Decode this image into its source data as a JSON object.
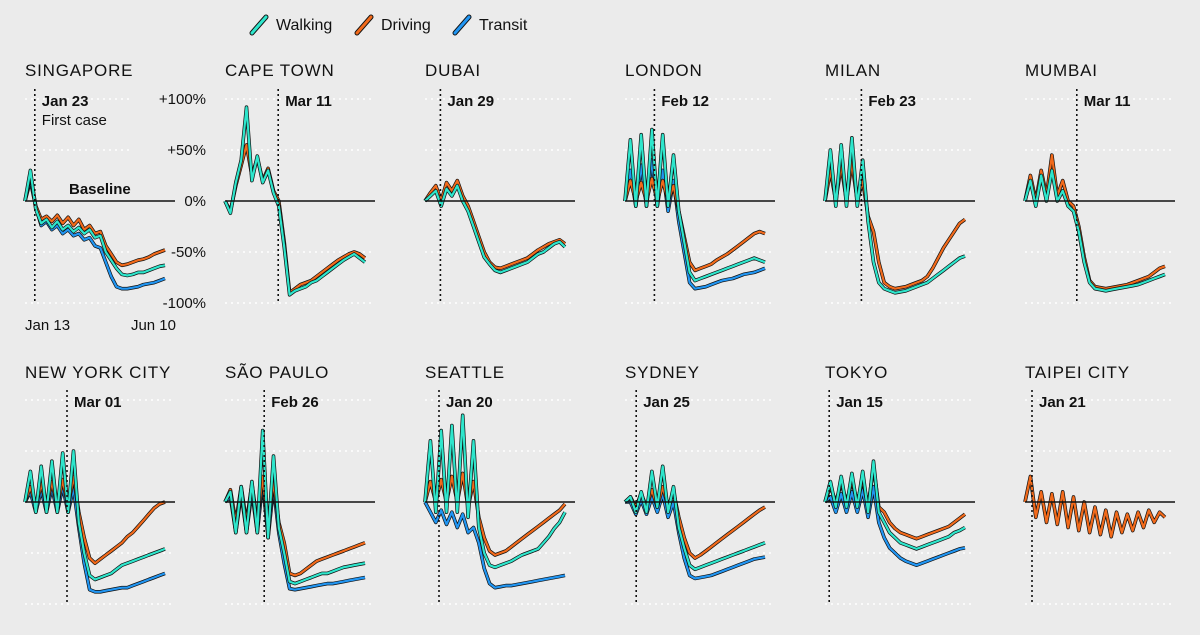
{
  "chart_data": {
    "type": "line",
    "title": "",
    "legend": [
      {
        "name": "Walking",
        "color": "#2ee6cc"
      },
      {
        "name": "Driving",
        "color": "#f26a1b"
      },
      {
        "name": "Transit",
        "color": "#2196f3"
      }
    ],
    "ylim": [
      -100,
      100
    ],
    "yticks": [
      {
        "value": 100,
        "label": "+100%"
      },
      {
        "value": 50,
        "label": "+50%"
      },
      {
        "value": 0,
        "label": "0%"
      },
      {
        "value": -50,
        "label": "-50%"
      },
      {
        "value": -100,
        "label": "-100%"
      }
    ],
    "x_start_label": "Jan 13",
    "x_end_label": "Jun 10",
    "baseline_label": "Baseline",
    "first_case_note": "First case",
    "cities": [
      {
        "name": "SINGAPORE",
        "marker": "Jan 23",
        "walking": [
          0,
          30,
          -8,
          -22,
          -18,
          -26,
          -20,
          -28,
          -24,
          -30,
          -26,
          -32,
          -28,
          -36,
          -34,
          -50,
          -58,
          -66,
          -72,
          -73,
          -72,
          -70,
          -70,
          -68,
          -66,
          -64,
          -63
        ],
        "driving": [
          0,
          25,
          -5,
          -18,
          -15,
          -20,
          -14,
          -22,
          -16,
          -24,
          -18,
          -28,
          -24,
          -32,
          -30,
          -44,
          -52,
          -60,
          -63,
          -62,
          -60,
          -58,
          -57,
          -55,
          -52,
          -50,
          -48
        ],
        "transit": [
          0,
          20,
          -6,
          -24,
          -20,
          -28,
          -24,
          -32,
          -28,
          -34,
          -32,
          -38,
          -36,
          -44,
          -46,
          -60,
          -74,
          -84,
          -86,
          -86,
          -85,
          -84,
          -82,
          -81,
          -80,
          -78,
          -76
        ]
      },
      {
        "name": "CAPE TOWN",
        "marker": "Mar 11",
        "walking": [
          0,
          -12,
          18,
          40,
          92,
          20,
          44,
          18,
          30,
          8,
          -5,
          -45,
          -92,
          -88,
          -86,
          -84,
          -80,
          -78,
          -74,
          -70,
          -66,
          -62,
          -58,
          -55,
          -52,
          -56,
          -60
        ],
        "driving": [
          0,
          -10,
          15,
          35,
          55,
          25,
          42,
          20,
          32,
          10,
          0,
          -40,
          -90,
          -86,
          -82,
          -80,
          -78,
          -74,
          -70,
          -66,
          -62,
          -58,
          -55,
          -52,
          -50,
          -52,
          -56
        ],
        "transit": null
      },
      {
        "name": "DUBAI",
        "marker": "Jan 29",
        "walking": [
          0,
          5,
          10,
          -5,
          12,
          5,
          15,
          0,
          -10,
          -25,
          -40,
          -55,
          -62,
          -68,
          -70,
          -68,
          -66,
          -64,
          -62,
          -60,
          -56,
          -52,
          -50,
          -46,
          -42,
          -40,
          -45
        ],
        "driving": [
          0,
          8,
          15,
          0,
          18,
          10,
          20,
          5,
          -5,
          -20,
          -35,
          -50,
          -60,
          -65,
          -66,
          -64,
          -62,
          -60,
          -58,
          -56,
          -52,
          -48,
          -45,
          -42,
          -40,
          -38,
          -42
        ],
        "transit": null
      },
      {
        "name": "LONDON",
        "marker": "Feb 12",
        "walking": [
          0,
          60,
          -5,
          65,
          -5,
          70,
          -5,
          65,
          -5,
          45,
          -10,
          -40,
          -70,
          -78,
          -76,
          -74,
          -72,
          -70,
          -68,
          -66,
          -64,
          -62,
          -60,
          -58,
          -56,
          -58,
          -60
        ],
        "driving": [
          0,
          20,
          0,
          18,
          0,
          22,
          0,
          20,
          0,
          15,
          -10,
          -35,
          -60,
          -68,
          -66,
          -64,
          -62,
          -58,
          -55,
          -52,
          -48,
          -44,
          -40,
          -36,
          -32,
          -30,
          -32
        ],
        "transit": [
          0,
          30,
          -5,
          35,
          -5,
          40,
          -5,
          30,
          -10,
          20,
          -20,
          -50,
          -80,
          -86,
          -85,
          -84,
          -82,
          -80,
          -78,
          -77,
          -76,
          -74,
          -72,
          -71,
          -70,
          -68,
          -66
        ]
      },
      {
        "name": "MILAN",
        "marker": "Feb 23",
        "walking": [
          0,
          50,
          -5,
          55,
          -5,
          62,
          -5,
          40,
          -20,
          -60,
          -80,
          -86,
          -88,
          -90,
          -89,
          -88,
          -86,
          -84,
          -82,
          -80,
          -76,
          -72,
          -68,
          -64,
          -60,
          -56,
          -54
        ],
        "driving": [
          0,
          30,
          0,
          35,
          0,
          38,
          0,
          20,
          -15,
          -30,
          -60,
          -80,
          -84,
          -86,
          -85,
          -84,
          -82,
          -80,
          -78,
          -74,
          -66,
          -56,
          -46,
          -38,
          -30,
          -22,
          -18
        ],
        "transit": null
      },
      {
        "name": "MUMBAI",
        "marker": "Mar 11",
        "walking": [
          0,
          20,
          -5,
          25,
          0,
          30,
          0,
          10,
          -5,
          -10,
          -30,
          -60,
          -80,
          -86,
          -87,
          -88,
          -87,
          -86,
          -85,
          -84,
          -83,
          -82,
          -80,
          -78,
          -76,
          -74,
          -72
        ],
        "driving": [
          0,
          25,
          0,
          30,
          5,
          45,
          5,
          20,
          0,
          -5,
          -25,
          -55,
          -78,
          -84,
          -85,
          -86,
          -85,
          -84,
          -83,
          -82,
          -80,
          -78,
          -76,
          -74,
          -70,
          -66,
          -64
        ],
        "transit": null
      },
      {
        "name": "NEW YORK CITY",
        "marker": "Mar 01",
        "walking": [
          0,
          30,
          -10,
          35,
          -10,
          40,
          -10,
          48,
          -10,
          50,
          -20,
          -50,
          -72,
          -76,
          -74,
          -72,
          -70,
          -66,
          -62,
          -60,
          -58,
          -56,
          -54,
          -52,
          -50,
          -48,
          -46
        ],
        "driving": [
          0,
          15,
          -5,
          18,
          -5,
          20,
          -5,
          22,
          -5,
          25,
          -10,
          -35,
          -55,
          -60,
          -56,
          -52,
          -48,
          -44,
          -40,
          -34,
          -30,
          -24,
          -18,
          -12,
          -6,
          -2,
          0
        ],
        "transit": [
          0,
          10,
          -10,
          12,
          -10,
          14,
          -10,
          15,
          -10,
          14,
          -25,
          -60,
          -86,
          -88,
          -88,
          -87,
          -86,
          -85,
          -84,
          -84,
          -82,
          -80,
          -78,
          -76,
          -74,
          -72,
          -70
        ]
      },
      {
        "name": "SÃO PAULO",
        "marker": "Feb 26",
        "walking": [
          0,
          10,
          -30,
          15,
          -30,
          20,
          -30,
          70,
          -35,
          45,
          -25,
          -50,
          -78,
          -80,
          -78,
          -76,
          -74,
          -72,
          -70,
          -70,
          -68,
          -66,
          -64,
          -63,
          -62,
          -61,
          -60
        ],
        "driving": [
          0,
          12,
          -20,
          15,
          -20,
          18,
          -20,
          25,
          -25,
          20,
          -20,
          -40,
          -70,
          -72,
          -70,
          -66,
          -62,
          -58,
          -56,
          -54,
          -52,
          -50,
          -48,
          -46,
          -44,
          -42,
          -40
        ],
        "transit": [
          0,
          5,
          -30,
          8,
          -30,
          10,
          -30,
          20,
          -35,
          15,
          -30,
          -60,
          -85,
          -86,
          -85,
          -84,
          -83,
          -82,
          -81,
          -80,
          -80,
          -79,
          -78,
          -77,
          -76,
          -75,
          -74
        ]
      },
      {
        "name": "SEATTLE",
        "marker": "Jan 20",
        "walking": [
          0,
          60,
          -10,
          70,
          -10,
          75,
          -10,
          85,
          -15,
          60,
          -25,
          -50,
          -62,
          -64,
          -62,
          -60,
          -58,
          -55,
          -52,
          -50,
          -48,
          -46,
          -40,
          -34,
          -26,
          -20,
          -10
        ],
        "driving": [
          0,
          20,
          0,
          22,
          0,
          25,
          0,
          28,
          -5,
          20,
          -15,
          -35,
          -48,
          -52,
          -50,
          -48,
          -44,
          -40,
          -36,
          -32,
          -28,
          -24,
          -20,
          -16,
          -12,
          -8,
          -2
        ],
        "transit": [
          0,
          -10,
          -20,
          -8,
          -22,
          -10,
          -25,
          -12,
          -30,
          -25,
          -40,
          -65,
          -80,
          -84,
          -83,
          -82,
          -82,
          -81,
          -80,
          -79,
          -78,
          -77,
          -76,
          -75,
          -74,
          -73,
          -72
        ]
      },
      {
        "name": "SYDNEY",
        "marker": "Jan 25",
        "walking": [
          0,
          5,
          -10,
          10,
          -10,
          30,
          -5,
          35,
          -10,
          15,
          -25,
          -45,
          -62,
          -66,
          -64,
          -62,
          -60,
          -58,
          -56,
          -54,
          -52,
          -50,
          -48,
          -46,
          -44,
          -42,
          -40
        ],
        "driving": [
          0,
          5,
          -5,
          8,
          -5,
          12,
          -5,
          15,
          -5,
          10,
          -15,
          -35,
          -50,
          -55,
          -52,
          -48,
          -44,
          -40,
          -36,
          -32,
          -28,
          -24,
          -20,
          -16,
          -12,
          -8,
          -5
        ],
        "transit": [
          0,
          0,
          -12,
          2,
          -12,
          5,
          -10,
          8,
          -15,
          0,
          -30,
          -55,
          -72,
          -75,
          -74,
          -73,
          -72,
          -70,
          -68,
          -66,
          -64,
          -62,
          -60,
          -58,
          -56,
          -55,
          -54
        ]
      },
      {
        "name": "TOKYO",
        "marker": "Jan 15",
        "walking": [
          0,
          20,
          -5,
          25,
          -5,
          28,
          -5,
          30,
          -10,
          40,
          -10,
          -20,
          -30,
          -35,
          -40,
          -42,
          -44,
          -46,
          -44,
          -42,
          -40,
          -38,
          -36,
          -34,
          -30,
          -28,
          -25
        ],
        "driving": [
          0,
          15,
          0,
          18,
          0,
          20,
          0,
          22,
          -5,
          35,
          -5,
          -10,
          -20,
          -26,
          -30,
          -32,
          -34,
          -36,
          -34,
          -32,
          -30,
          -28,
          -26,
          -24,
          -20,
          -16,
          -12
        ],
        "transit": [
          0,
          5,
          -10,
          8,
          -10,
          10,
          -10,
          12,
          -15,
          15,
          -20,
          -35,
          -45,
          -50,
          -55,
          -58,
          -60,
          -62,
          -60,
          -58,
          -56,
          -54,
          -52,
          -50,
          -48,
          -46,
          -45
        ]
      },
      {
        "name": "TAIPEI CITY",
        "marker": "Jan 21",
        "walking": null,
        "driving": [
          0,
          25,
          -15,
          10,
          -20,
          8,
          -22,
          10,
          -25,
          5,
          -28,
          0,
          -30,
          -5,
          -32,
          -8,
          -34,
          -10,
          -30,
          -12,
          -28,
          -10,
          -25,
          -8,
          -20,
          -10,
          -15
        ],
        "transit": null
      }
    ]
  }
}
